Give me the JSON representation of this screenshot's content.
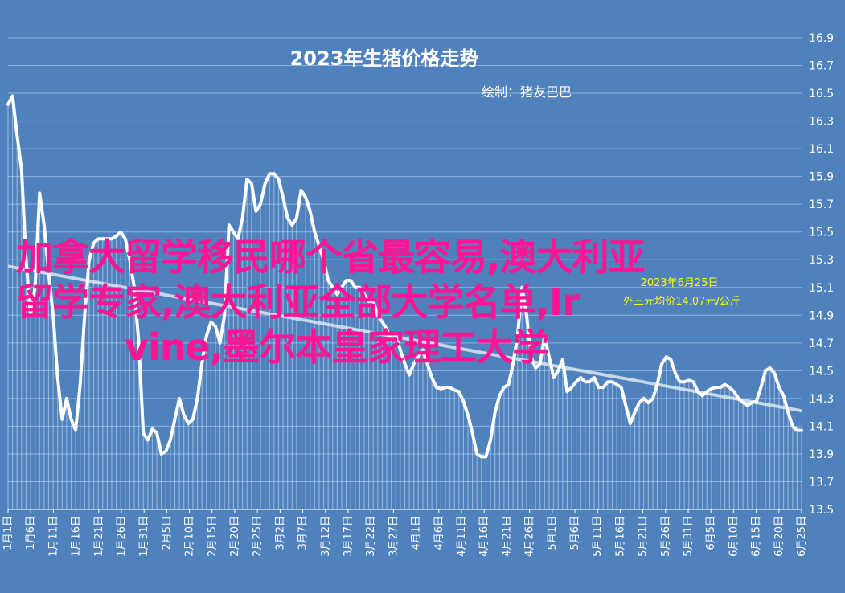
{
  "chart_data": {
    "type": "line",
    "title": "2023年生猪价格走势",
    "subtitle": "绘制：猪友巴巴",
    "annotation": {
      "line1": "2023年6月25日",
      "line2": "外三元均价14.07元/公斤"
    },
    "ylim": [
      13.5,
      16.9
    ],
    "yticks": [
      "13.5",
      "13.7",
      "13.9",
      "14.1",
      "14.3",
      "14.5",
      "14.7",
      "14.9",
      "15.1",
      "15.3",
      "15.5",
      "15.7",
      "15.9",
      "16.1",
      "16.3",
      "16.5",
      "16.7",
      "16.9"
    ],
    "xtick_labels": [
      "1月1日",
      "1月6日",
      "1月11日",
      "1月16日",
      "1月21日",
      "1月26日",
      "1月31日",
      "2月5日",
      "2月10日",
      "2月15日",
      "2月20日",
      "2月25日",
      "3月2日",
      "3月7日",
      "3月12日",
      "3月17日",
      "3月22日",
      "3月27日",
      "4月1日",
      "4月6日",
      "4月11日",
      "4月16日",
      "4月21日",
      "4月26日",
      "5月1日",
      "5月6日",
      "5月11日",
      "5月16日",
      "5月21日",
      "5月26日",
      "5月31日",
      "6月5日",
      "6月10日",
      "6月15日",
      "6月20日",
      "6月25日"
    ],
    "grid": true,
    "legend": "none",
    "series": [
      {
        "name": "",
        "color": "#ffffff",
        "values": [
          16.42,
          16.48,
          16.2,
          15.95,
          15.3,
          14.9,
          15.1,
          15.78,
          15.55,
          15.2,
          14.9,
          14.45,
          14.15,
          14.3,
          14.15,
          14.07,
          14.4,
          14.9,
          15.3,
          15.42,
          15.45,
          15.45,
          15.45,
          15.45,
          15.47,
          15.5,
          15.45,
          15.3,
          15.1,
          14.7,
          14.05,
          14.0,
          14.08,
          14.05,
          13.9,
          13.92,
          14.0,
          14.15,
          14.3,
          14.18,
          14.12,
          14.15,
          14.3,
          14.55,
          14.75,
          14.85,
          14.82,
          14.7,
          14.9,
          15.55,
          15.5,
          15.45,
          15.6,
          15.88,
          15.85,
          15.65,
          15.7,
          15.85,
          15.92,
          15.92,
          15.88,
          15.75,
          15.6,
          15.55,
          15.6,
          15.8,
          15.75,
          15.65,
          15.5,
          15.4,
          15.3,
          15.15,
          15.1,
          15.05,
          15.1,
          15.15,
          15.15,
          15.1,
          15.1,
          15.05,
          15.0,
          15.0,
          14.9,
          14.85,
          14.8,
          14.72,
          14.75,
          14.65,
          14.55,
          14.47,
          14.55,
          14.6,
          14.65,
          14.55,
          14.45,
          14.38,
          14.37,
          14.38,
          14.38,
          14.36,
          14.35,
          14.28,
          14.18,
          14.05,
          13.9,
          13.88,
          13.88,
          14.0,
          14.2,
          14.32,
          14.38,
          14.4,
          14.55,
          14.75,
          15.1,
          14.9,
          14.6,
          14.52,
          14.55,
          14.75,
          14.6,
          14.45,
          14.5,
          14.58,
          14.35,
          14.38,
          14.42,
          14.45,
          14.42,
          14.42,
          14.45,
          14.38,
          14.38,
          14.42,
          14.42,
          14.4,
          14.38,
          14.25,
          14.12,
          14.2,
          14.27,
          14.3,
          14.27,
          14.3,
          14.4,
          14.55,
          14.6,
          14.58,
          14.48,
          14.42,
          14.42,
          14.43,
          14.42,
          14.35,
          14.32,
          14.35,
          14.37,
          14.38,
          14.38,
          14.4,
          14.38,
          14.35,
          14.3,
          14.27,
          14.25,
          14.27,
          14.28,
          14.38,
          14.5,
          14.52,
          14.48,
          14.38,
          14.32,
          14.2,
          14.1,
          14.07,
          14.07
        ]
      }
    ]
  },
  "overlay_text": {
    "line1": "加拿大留学移民哪个省最容易,澳大利亚",
    "line2": "留学专家,澳大利亚全部大学名单,Ir",
    "line3": "　　　vine,墨尔本皇家理工大学"
  }
}
